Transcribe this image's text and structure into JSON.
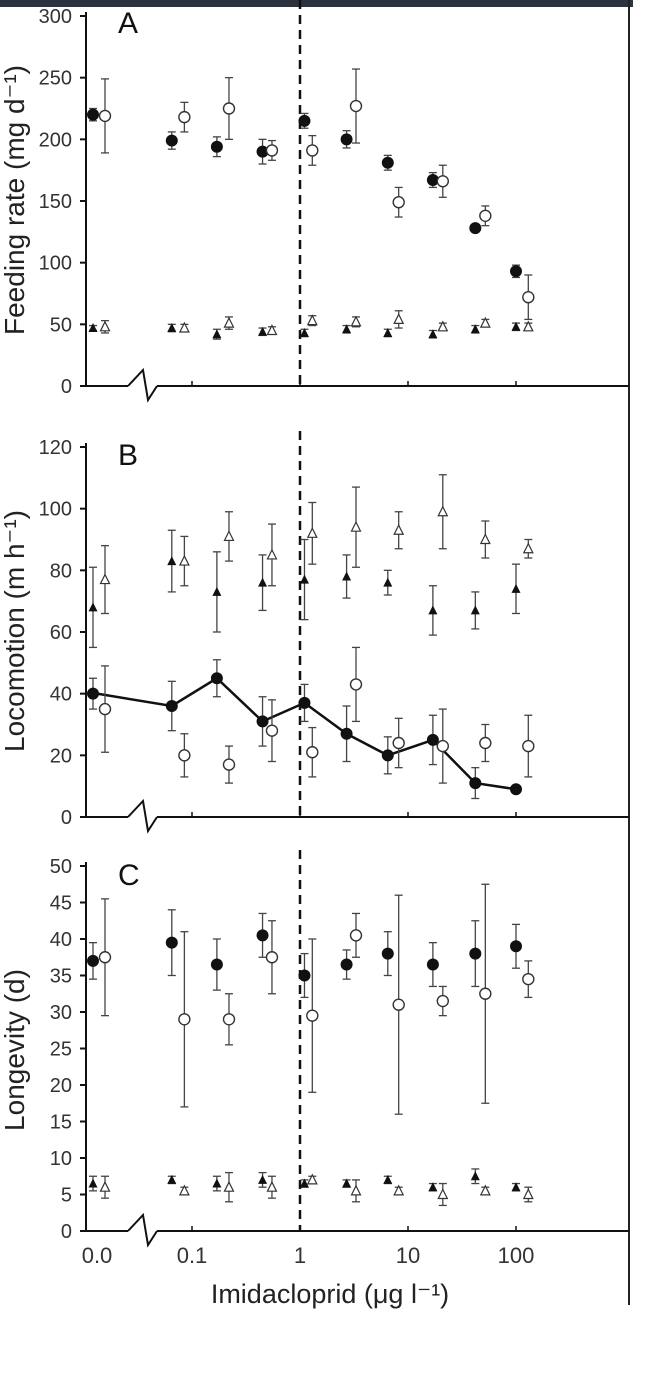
{
  "figure": {
    "xlabel": "Imidacloprid (μg l⁻¹)",
    "x_tick_labels": [
      "0.0",
      "0.1",
      "1",
      "10",
      "100"
    ]
  },
  "chart_data": [
    {
      "type": "scatter",
      "panel": "A",
      "ylabel": "Feeding rate (mg d⁻¹)",
      "x_scale": "log",
      "ylim": [
        0,
        300
      ],
      "yticks": [
        0,
        50,
        100,
        150,
        200,
        250,
        300
      ],
      "reference_line_x": 1,
      "series": [
        {
          "marker": "filled-circle",
          "x": [
            0.0,
            0.065,
            0.17,
            0.45,
            1.1,
            2.7,
            6.5,
            17,
            42,
            100
          ],
          "y": [
            220,
            199,
            194,
            190,
            215,
            200,
            181,
            167,
            128,
            93
          ],
          "err": [
            5,
            7,
            8,
            10,
            6,
            7,
            6,
            6,
            2,
            5
          ]
        },
        {
          "marker": "open-circle",
          "x": [
            0.0,
            0.085,
            0.22,
            0.55,
            1.3,
            3.3,
            8.2,
            21,
            52,
            130
          ],
          "y": [
            219,
            218,
            225,
            191,
            191,
            227,
            149,
            166,
            138,
            72
          ],
          "err": [
            30,
            12,
            25,
            8,
            12,
            30,
            12,
            13,
            8,
            18
          ]
        },
        {
          "marker": "filled-triangle",
          "x": [
            0.0,
            0.065,
            0.17,
            0.45,
            1.1,
            2.7,
            6.5,
            17,
            42,
            100
          ],
          "y": [
            47,
            47,
            42,
            44,
            43,
            46,
            43,
            42,
            46,
            48
          ],
          "err": [
            2,
            3,
            4,
            3,
            3,
            3,
            3,
            3,
            3,
            3
          ]
        },
        {
          "marker": "open-triangle",
          "x": [
            0.0,
            0.085,
            0.22,
            0.55,
            1.3,
            3.3,
            8.2,
            21,
            52,
            130
          ],
          "y": [
            48,
            47,
            51,
            45,
            53,
            52,
            54,
            48,
            51,
            48
          ],
          "err": [
            5,
            3,
            5,
            3,
            4,
            4,
            7,
            3,
            3,
            3
          ]
        }
      ]
    },
    {
      "type": "scatter",
      "panel": "B",
      "ylabel": "Locomotion (m h⁻¹)",
      "x_scale": "log",
      "ylim": [
        0,
        120
      ],
      "yticks": [
        0,
        20,
        40,
        60,
        80,
        100,
        120
      ],
      "reference_line_x": 1,
      "series": [
        {
          "marker": "filled-circle",
          "connected": true,
          "x": [
            0.0,
            0.065,
            0.17,
            0.45,
            1.1,
            2.7,
            6.5,
            17,
            42,
            100
          ],
          "y": [
            40,
            36,
            45,
            31,
            37,
            27,
            20,
            25,
            11,
            9
          ],
          "err": [
            5,
            8,
            6,
            8,
            6,
            9,
            6,
            8,
            5,
            1
          ]
        },
        {
          "marker": "open-circle",
          "x": [
            0.0,
            0.085,
            0.22,
            0.55,
            1.3,
            3.3,
            8.2,
            21,
            52,
            130
          ],
          "y": [
            35,
            20,
            17,
            28,
            21,
            43,
            24,
            23,
            24,
            23
          ],
          "err": [
            14,
            7,
            6,
            10,
            8,
            12,
            8,
            12,
            6,
            10
          ]
        },
        {
          "marker": "filled-triangle",
          "x": [
            0.0,
            0.065,
            0.17,
            0.45,
            1.1,
            2.7,
            6.5,
            17,
            42,
            100
          ],
          "y": [
            68,
            83,
            73,
            76,
            77,
            78,
            76,
            67,
            67,
            74
          ],
          "err": [
            13,
            10,
            13,
            9,
            13,
            7,
            4,
            8,
            6,
            8
          ]
        },
        {
          "marker": "open-triangle",
          "x": [
            0.0,
            0.085,
            0.22,
            0.55,
            1.3,
            3.3,
            8.2,
            21,
            52,
            130
          ],
          "y": [
            77,
            83,
            91,
            85,
            92,
            94,
            93,
            99,
            90,
            87
          ],
          "err": [
            11,
            8,
            8,
            10,
            10,
            13,
            6,
            12,
            6,
            3
          ]
        }
      ]
    },
    {
      "type": "scatter",
      "panel": "C",
      "ylabel": "Longevity (d)",
      "x_scale": "log",
      "ylim": [
        0,
        50
      ],
      "yticks": [
        0,
        5,
        10,
        15,
        20,
        25,
        30,
        35,
        40,
        45,
        50
      ],
      "reference_line_x": 1,
      "series": [
        {
          "marker": "filled-circle",
          "x": [
            0.0,
            0.065,
            0.17,
            0.45,
            1.1,
            2.7,
            6.5,
            17,
            42,
            100
          ],
          "y": [
            37,
            39.5,
            36.5,
            40.5,
            35,
            36.5,
            38,
            36.5,
            38,
            39
          ],
          "err": [
            2.5,
            4.5,
            3.5,
            3,
            3,
            2,
            3,
            3,
            4.5,
            3
          ]
        },
        {
          "marker": "open-circle",
          "x": [
            0.0,
            0.085,
            0.22,
            0.55,
            1.3,
            3.3,
            8.2,
            21,
            52,
            130
          ],
          "y": [
            37.5,
            29,
            29,
            37.5,
            29.5,
            40.5,
            31,
            31.5,
            32.5,
            34.5
          ],
          "err": [
            8,
            12,
            3.5,
            5,
            10.5,
            3,
            15,
            2,
            15,
            2.5
          ]
        },
        {
          "marker": "filled-triangle",
          "x": [
            0.0,
            0.065,
            0.17,
            0.45,
            1.1,
            2.7,
            6.5,
            17,
            42,
            100
          ],
          "y": [
            6.5,
            7,
            6.5,
            7,
            6.5,
            6.5,
            7,
            6,
            7.5,
            6
          ],
          "err": [
            1,
            0.5,
            1,
            1,
            0.5,
            0.5,
            0.5,
            0.5,
            1,
            0.5
          ]
        },
        {
          "marker": "open-triangle",
          "x": [
            0.0,
            0.085,
            0.22,
            0.55,
            1.3,
            3.3,
            8.2,
            21,
            52,
            130
          ],
          "y": [
            6,
            5.5,
            6,
            6,
            7,
            5.5,
            5.5,
            5,
            5.5,
            5
          ],
          "err": [
            1.5,
            0.5,
            2,
            1.5,
            0.5,
            1.5,
            0.5,
            1.5,
            0.5,
            1
          ]
        }
      ]
    }
  ]
}
